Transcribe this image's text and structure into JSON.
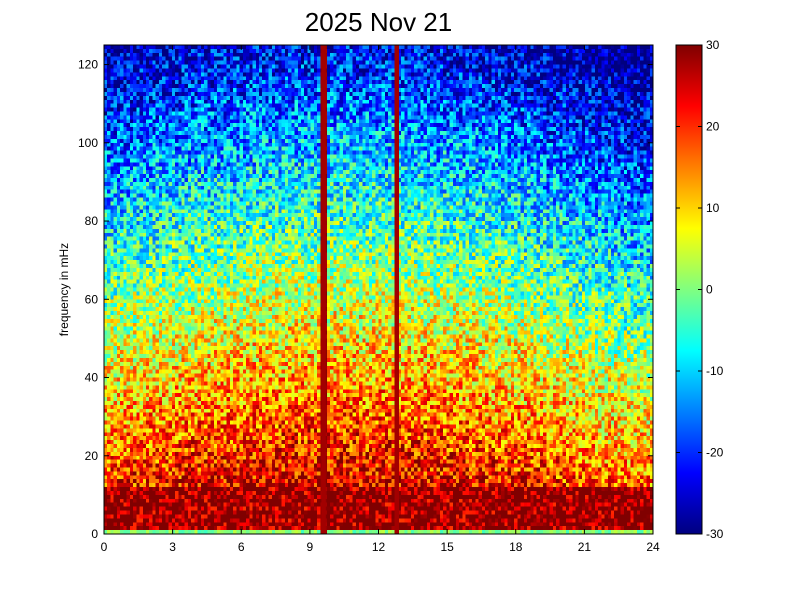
{
  "chart_data": {
    "type": "heatmap",
    "title": "2025 Nov 21",
    "xlabel": "",
    "ylabel": "frequency in mHz",
    "xlim": [
      0,
      24
    ],
    "ylim": [
      0,
      125
    ],
    "x_ticks": [
      0,
      3,
      6,
      9,
      12,
      15,
      18,
      21,
      24
    ],
    "x_tick_labels": [
      "0",
      "3",
      "6",
      "9",
      "12",
      "15",
      "18",
      "21",
      "24"
    ],
    "y_ticks": [
      0,
      20,
      40,
      60,
      80,
      100,
      120
    ],
    "y_tick_labels": [
      "0",
      "20",
      "40",
      "60",
      "80",
      "100",
      "120"
    ],
    "colorbar": {
      "colormap": "jet",
      "clim": [
        -30,
        30
      ],
      "ticks": [
        -30,
        -20,
        -10,
        0,
        10,
        20,
        30
      ],
      "tick_labels": [
        "-30",
        "-20",
        "-10",
        "0",
        "10",
        "20",
        "30"
      ]
    },
    "grid": false,
    "features": {
      "vertical_lines_hours": [
        9.6,
        12.8
      ],
      "vertical_line_level": 30,
      "low_frequency_strong_band_mHz": [
        2,
        10
      ],
      "lowest_row_level": 0
    }
  }
}
